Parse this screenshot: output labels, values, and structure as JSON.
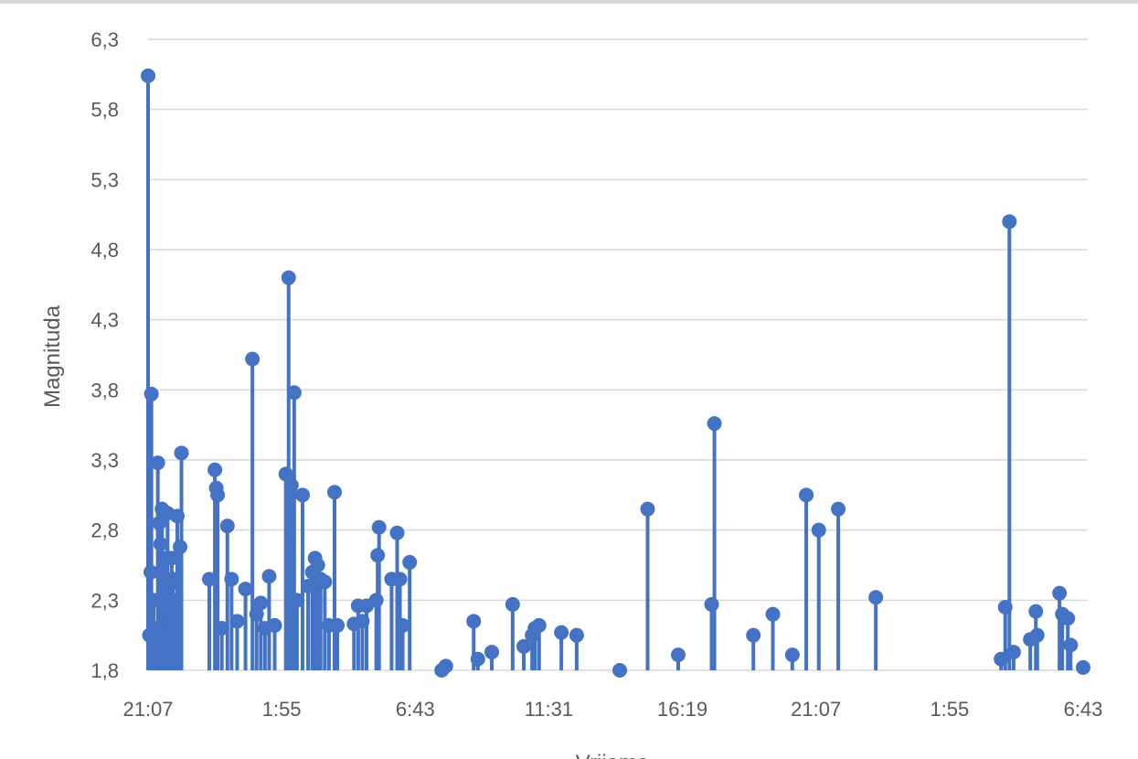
{
  "chart_data": {
    "type": "stem",
    "title": "",
    "xlabel": "Vrijeme",
    "ylabel": "Magnituda",
    "ylim": [
      1.8,
      6.3
    ],
    "yticks": [
      "1,8",
      "2,3",
      "2,8",
      "3,3",
      "3,8",
      "4,3",
      "4,8",
      "5,3",
      "5,8",
      "6,3"
    ],
    "xticks": [
      "21:07",
      "1:55",
      "6:43",
      "11:31",
      "16:19",
      "21:07",
      "1:55",
      "6:43"
    ],
    "xlim_hours": [
      0,
      33.6
    ],
    "grid": true,
    "series_color": "#4472c4",
    "points": [
      {
        "t": 0.0,
        "m": 6.04
      },
      {
        "t": 0.05,
        "m": 2.05
      },
      {
        "t": 0.1,
        "m": 2.5
      },
      {
        "t": 0.12,
        "m": 3.77
      },
      {
        "t": 0.2,
        "m": 2.3
      },
      {
        "t": 0.28,
        "m": 2.1
      },
      {
        "t": 0.35,
        "m": 3.28
      },
      {
        "t": 0.4,
        "m": 2.85
      },
      {
        "t": 0.45,
        "m": 2.7
      },
      {
        "t": 0.5,
        "m": 2.95
      },
      {
        "t": 0.55,
        "m": 2.2
      },
      {
        "t": 0.6,
        "m": 2.6
      },
      {
        "t": 0.65,
        "m": 2.45
      },
      {
        "t": 0.7,
        "m": 2.92
      },
      {
        "t": 0.75,
        "m": 2.4
      },
      {
        "t": 0.8,
        "m": 2.1
      },
      {
        "t": 0.85,
        "m": 2.6
      },
      {
        "t": 0.9,
        "m": 2.45
      },
      {
        "t": 0.95,
        "m": 2.3
      },
      {
        "t": 1.05,
        "m": 2.9
      },
      {
        "t": 1.15,
        "m": 2.68
      },
      {
        "t": 1.2,
        "m": 3.35
      },
      {
        "t": 2.2,
        "m": 2.45
      },
      {
        "t": 2.4,
        "m": 3.23
      },
      {
        "t": 2.45,
        "m": 3.1
      },
      {
        "t": 2.5,
        "m": 3.05
      },
      {
        "t": 2.65,
        "m": 2.1
      },
      {
        "t": 2.85,
        "m": 2.83
      },
      {
        "t": 3.0,
        "m": 2.45
      },
      {
        "t": 3.2,
        "m": 2.15
      },
      {
        "t": 3.5,
        "m": 2.38
      },
      {
        "t": 3.75,
        "m": 4.02
      },
      {
        "t": 3.9,
        "m": 2.2
      },
      {
        "t": 4.05,
        "m": 2.28
      },
      {
        "t": 4.2,
        "m": 2.1
      },
      {
        "t": 4.35,
        "m": 2.47
      },
      {
        "t": 4.55,
        "m": 2.12
      },
      {
        "t": 4.95,
        "m": 3.2
      },
      {
        "t": 5.05,
        "m": 4.6
      },
      {
        "t": 5.15,
        "m": 3.12
      },
      {
        "t": 5.25,
        "m": 3.78
      },
      {
        "t": 5.35,
        "m": 2.3
      },
      {
        "t": 5.55,
        "m": 3.05
      },
      {
        "t": 5.75,
        "m": 2.4
      },
      {
        "t": 5.9,
        "m": 2.5
      },
      {
        "t": 6.0,
        "m": 2.6
      },
      {
        "t": 6.1,
        "m": 2.55
      },
      {
        "t": 6.2,
        "m": 2.45
      },
      {
        "t": 6.35,
        "m": 2.43
      },
      {
        "t": 6.5,
        "m": 2.12
      },
      {
        "t": 6.7,
        "m": 3.07
      },
      {
        "t": 6.8,
        "m": 2.12
      },
      {
        "t": 7.4,
        "m": 2.13
      },
      {
        "t": 7.55,
        "m": 2.26
      },
      {
        "t": 7.7,
        "m": 2.15
      },
      {
        "t": 7.85,
        "m": 2.26
      },
      {
        "t": 8.2,
        "m": 2.3
      },
      {
        "t": 8.25,
        "m": 2.62
      },
      {
        "t": 8.3,
        "m": 2.82
      },
      {
        "t": 8.75,
        "m": 2.45
      },
      {
        "t": 8.95,
        "m": 2.78
      },
      {
        "t": 9.05,
        "m": 2.45
      },
      {
        "t": 9.15,
        "m": 2.12
      },
      {
        "t": 9.4,
        "m": 2.57
      },
      {
        "t": 10.55,
        "m": 1.8
      },
      {
        "t": 10.7,
        "m": 1.83
      },
      {
        "t": 11.7,
        "m": 2.15
      },
      {
        "t": 11.85,
        "m": 1.88
      },
      {
        "t": 12.35,
        "m": 1.93
      },
      {
        "t": 13.1,
        "m": 2.27
      },
      {
        "t": 13.5,
        "m": 1.97
      },
      {
        "t": 13.8,
        "m": 2.05
      },
      {
        "t": 13.9,
        "m": 2.1
      },
      {
        "t": 14.05,
        "m": 2.12
      },
      {
        "t": 14.85,
        "m": 2.07
      },
      {
        "t": 15.4,
        "m": 2.05
      },
      {
        "t": 16.95,
        "m": 1.8
      },
      {
        "t": 17.95,
        "m": 2.95
      },
      {
        "t": 19.05,
        "m": 1.91
      },
      {
        "t": 20.25,
        "m": 2.27
      },
      {
        "t": 20.35,
        "m": 3.56
      },
      {
        "t": 21.75,
        "m": 2.05
      },
      {
        "t": 22.45,
        "m": 2.2
      },
      {
        "t": 23.15,
        "m": 1.91
      },
      {
        "t": 23.65,
        "m": 3.05
      },
      {
        "t": 24.1,
        "m": 2.8
      },
      {
        "t": 24.8,
        "m": 2.95
      },
      {
        "t": 26.15,
        "m": 2.32
      },
      {
        "t": 30.65,
        "m": 1.88
      },
      {
        "t": 30.8,
        "m": 2.25
      },
      {
        "t": 30.95,
        "m": 5.0
      },
      {
        "t": 31.1,
        "m": 1.93
      },
      {
        "t": 31.7,
        "m": 2.02
      },
      {
        "t": 31.9,
        "m": 2.22
      },
      {
        "t": 31.95,
        "m": 2.05
      },
      {
        "t": 32.75,
        "m": 2.35
      },
      {
        "t": 32.85,
        "m": 2.2
      },
      {
        "t": 33.05,
        "m": 2.17
      },
      {
        "t": 33.15,
        "m": 1.98
      },
      {
        "t": 33.6,
        "m": 1.82
      }
    ]
  }
}
